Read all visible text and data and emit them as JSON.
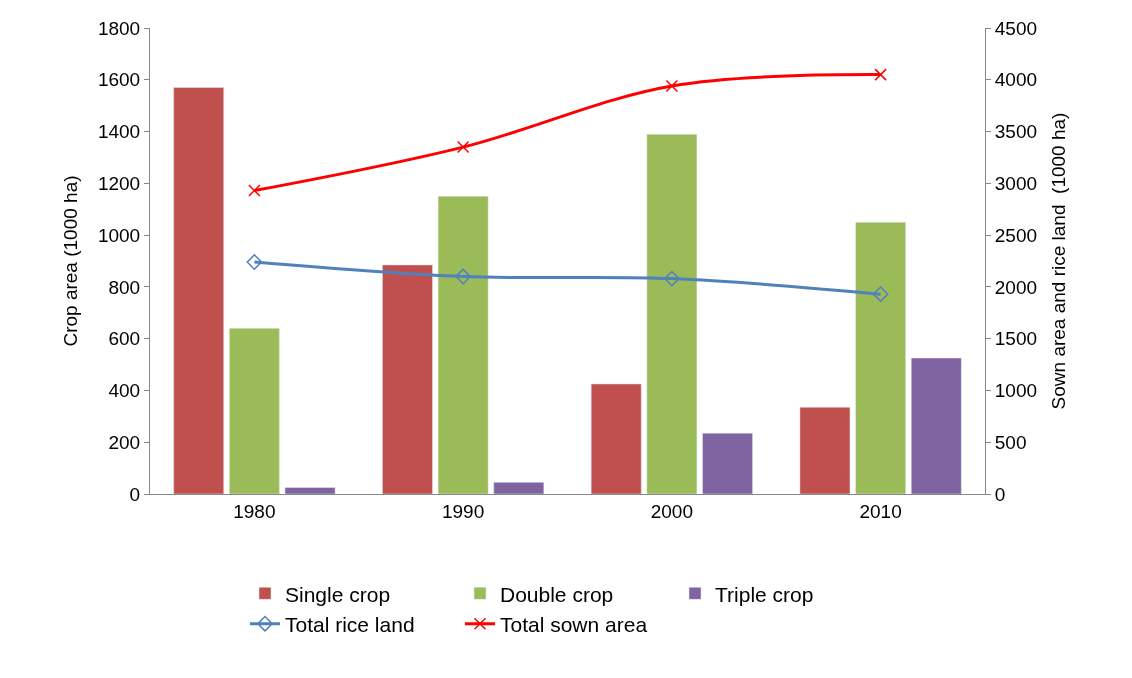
{
  "chart_data": {
    "type": "bar",
    "categories": [
      "1980",
      "1990",
      "2000",
      "2010"
    ],
    "ylabel": "Crop area (1000 ha)",
    "y2label": "Sown area and rice land  (1000 ha)",
    "ylim": [
      0,
      1800
    ],
    "yticks": [
      0,
      200,
      400,
      600,
      800,
      1000,
      1200,
      1400,
      1600,
      1800
    ],
    "y2lim": [
      0,
      4500
    ],
    "y2ticks": [
      0,
      500,
      1000,
      1500,
      2000,
      2500,
      3000,
      3500,
      4000,
      4500
    ],
    "legend": "bottom",
    "series": [
      {
        "name": "Single crop",
        "color": "#c0504d",
        "values": [
          1570,
          885,
          425,
          335
        ]
      },
      {
        "name": "Double crop",
        "color": "#9bbb59",
        "values": [
          640,
          1150,
          1390,
          1050
        ]
      },
      {
        "name": "Triple crop",
        "color": "#8064a2",
        "values": [
          25,
          45,
          235,
          525
        ]
      },
      {
        "name": "Total rice land",
        "type": "line",
        "axis": "y2",
        "color": "#4f81bd",
        "marker": "diamond",
        "values": [
          2240,
          2100,
          2080,
          1930
        ]
      },
      {
        "name": "Total sown area",
        "type": "line",
        "axis": "y2",
        "color": "#ff0000",
        "marker": "cross",
        "values": [
          2930,
          3350,
          3940,
          4050
        ]
      }
    ]
  }
}
